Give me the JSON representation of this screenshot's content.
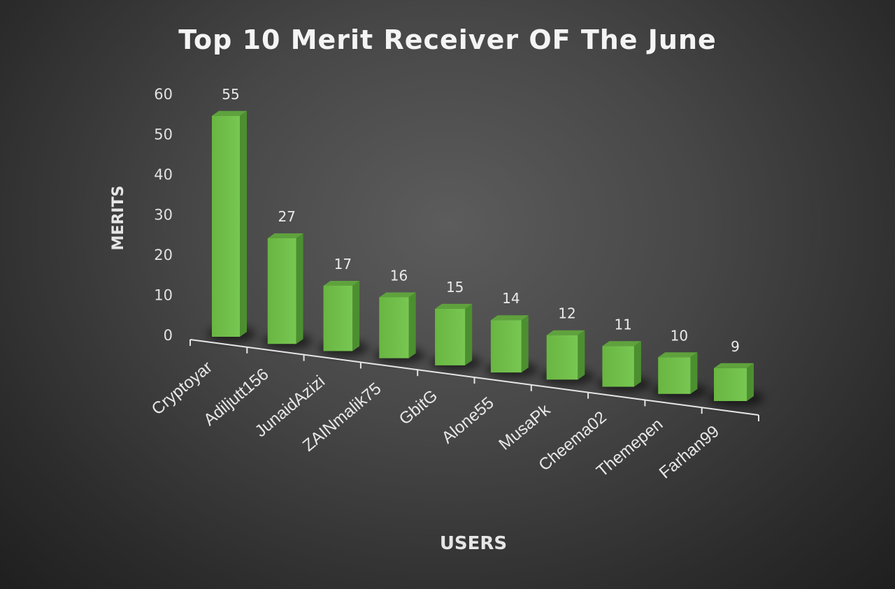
{
  "chart_data": {
    "type": "bar",
    "title": "Top 10 Merit Receiver OF The June",
    "xlabel": "USERS",
    "ylabel": "MERITS",
    "categories": [
      "Cryptoyar",
      "Adiljutt156",
      "JunaidAzizi",
      "ZAINmalik75",
      "GbitG",
      "Alone55",
      "MusaPk",
      "Cheema02",
      "Themepen",
      "Farhan99"
    ],
    "values": [
      55,
      27,
      17,
      16,
      15,
      14,
      12,
      11,
      10,
      9
    ],
    "data_labels": [
      "55",
      "27",
      "17",
      "16",
      "15",
      "14",
      "12",
      "11",
      "10",
      "9"
    ],
    "y_ticks": [
      "0",
      "10",
      "20",
      "30",
      "40",
      "50",
      "60"
    ],
    "ylim": [
      0,
      60
    ],
    "grid": false,
    "legend": "none",
    "bar_color": "#6cbb45",
    "background": "#404040"
  }
}
